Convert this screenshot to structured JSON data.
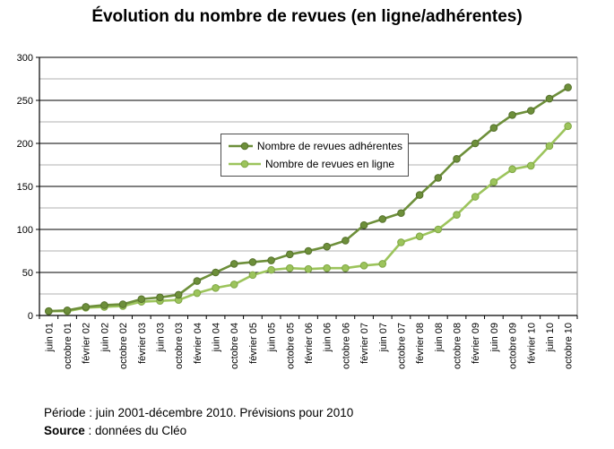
{
  "title": "Évolution du nombre de revues  (en ligne/adhérentes)",
  "footer": {
    "periode": "Période : juin 2001-décembre 2010. Prévisions pour 2010",
    "source_label": "Source",
    "source_rest": " : données du Cléo"
  },
  "colors": {
    "grid_major": "#000000",
    "grid_minor": "#b2b2b2",
    "plot_border": "#8c8c8c",
    "axis": "#000000"
  },
  "chart_data": {
    "type": "line",
    "title": "Évolution du nombre de revues  (en ligne/adhérentes)",
    "categories": [
      "juin 01",
      "octobre 01",
      "février 02",
      "juin 02",
      "octobre 02",
      "février 03",
      "juin 03",
      "octobre 03",
      "février 04",
      "juin 04",
      "octobre 04",
      "février 05",
      "juin 05",
      "octobre 05",
      "février 06",
      "juin 06",
      "octobre 06",
      "février 07",
      "juin 07",
      "octobre 07",
      "février 08",
      "juin 08",
      "octobre 08",
      "février 09",
      "juin 09",
      "octobre 09",
      "février 10",
      "juin 10",
      "octobre 10"
    ],
    "series": [
      {
        "name": "Nombre de revues adhérentes",
        "color": "#6d8f3a",
        "edge": "#55702c",
        "values": [
          5,
          6,
          10,
          12,
          13,
          19,
          21,
          24,
          40,
          50,
          60,
          62,
          64,
          71,
          75,
          80,
          87,
          105,
          112,
          119,
          140,
          160,
          182,
          200,
          218,
          233,
          238,
          252,
          265
        ]
      },
      {
        "name": "Nombre de revues en ligne",
        "color": "#9cc45c",
        "edge": "#7fa644",
        "values": [
          5,
          5,
          9,
          10,
          11,
          16,
          17,
          18,
          26,
          32,
          36,
          47,
          53,
          55,
          54,
          55,
          55,
          58,
          60,
          85,
          92,
          100,
          117,
          138,
          155,
          170,
          174,
          197,
          220
        ]
      }
    ],
    "ylim": [
      0,
      300
    ],
    "ytick_major": 50,
    "ytick_minor": 25,
    "grid": true,
    "legend_position": "inside-top-center-left",
    "xlabel": "",
    "ylabel": ""
  }
}
